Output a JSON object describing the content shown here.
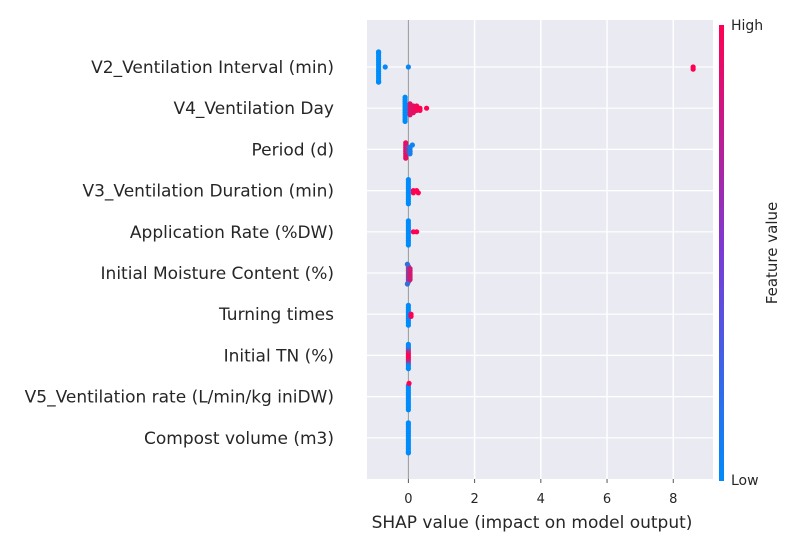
{
  "chart_data": {
    "type": "scatter",
    "subtype": "shap-beeswarm",
    "xlabel": "SHAP value (impact on model output)",
    "xlim": [
      -1.25,
      9.2
    ],
    "xticks": [
      0,
      2,
      4,
      6,
      8
    ],
    "grid": true,
    "colorbar": {
      "title": "Feature value",
      "high_label": "High",
      "low_label": "Low",
      "low_color": "#008bfb",
      "high_color": "#ff0052"
    },
    "features": [
      {
        "name": "V2_Ventilation Interval (min)",
        "points": [
          {
            "x": -0.9,
            "f": 0.0
          },
          {
            "x": -0.9,
            "f": 0.0
          },
          {
            "x": -0.9,
            "f": 0.0
          },
          {
            "x": -0.9,
            "f": 0.0
          },
          {
            "x": -0.9,
            "f": 0.0
          },
          {
            "x": -0.9,
            "f": 0.0
          },
          {
            "x": -0.9,
            "f": 0.0
          },
          {
            "x": -0.9,
            "f": 0.0
          },
          {
            "x": -0.9,
            "f": 0.0
          },
          {
            "x": -0.9,
            "f": 0.0
          },
          {
            "x": -0.9,
            "f": 0.0
          },
          {
            "x": -0.9,
            "f": 0.0
          },
          {
            "x": -0.9,
            "f": 0.0
          },
          {
            "x": -0.9,
            "f": 0.0
          },
          {
            "x": -0.9,
            "f": 0.0
          },
          {
            "x": -0.9,
            "f": 0.0
          },
          {
            "x": -0.9,
            "f": 0.0
          },
          {
            "x": -0.9,
            "f": 0.0
          },
          {
            "x": -0.7,
            "f": 0.02
          },
          {
            "x": 0.0,
            "f": 0.03
          },
          {
            "x": 8.6,
            "f": 1.0
          },
          {
            "x": 8.6,
            "f": 1.0
          }
        ]
      },
      {
        "name": "V4_Ventilation Day",
        "points": [
          {
            "x": -0.1,
            "f": 0.0
          },
          {
            "x": -0.1,
            "f": 0.0
          },
          {
            "x": -0.1,
            "f": 0.0
          },
          {
            "x": -0.1,
            "f": 0.0
          },
          {
            "x": -0.1,
            "f": 0.0
          },
          {
            "x": -0.1,
            "f": 0.0
          },
          {
            "x": -0.1,
            "f": 0.0
          },
          {
            "x": -0.1,
            "f": 0.0
          },
          {
            "x": -0.1,
            "f": 0.0
          },
          {
            "x": -0.1,
            "f": 0.0
          },
          {
            "x": -0.1,
            "f": 0.0
          },
          {
            "x": -0.1,
            "f": 0.0
          },
          {
            "x": 0.05,
            "f": 0.85
          },
          {
            "x": 0.05,
            "f": 0.85
          },
          {
            "x": 0.05,
            "f": 0.85
          },
          {
            "x": 0.05,
            "f": 0.85
          },
          {
            "x": 0.05,
            "f": 0.85
          },
          {
            "x": 0.05,
            "f": 0.85
          },
          {
            "x": 0.15,
            "f": 0.9
          },
          {
            "x": 0.15,
            "f": 0.9
          },
          {
            "x": 0.15,
            "f": 0.9
          },
          {
            "x": 0.15,
            "f": 0.9
          },
          {
            "x": 0.25,
            "f": 0.95
          },
          {
            "x": 0.25,
            "f": 0.95
          },
          {
            "x": 0.25,
            "f": 0.95
          },
          {
            "x": 0.35,
            "f": 1.0
          },
          {
            "x": 0.35,
            "f": 1.0
          },
          {
            "x": 0.55,
            "f": 1.0
          }
        ]
      },
      {
        "name": "Period (d)",
        "points": [
          {
            "x": -0.08,
            "f": 0.9
          },
          {
            "x": -0.08,
            "f": 0.9
          },
          {
            "x": -0.08,
            "f": 0.9
          },
          {
            "x": -0.08,
            "f": 0.9
          },
          {
            "x": -0.08,
            "f": 0.9
          },
          {
            "x": -0.08,
            "f": 0.9
          },
          {
            "x": -0.08,
            "f": 0.9
          },
          {
            "x": -0.08,
            "f": 0.9
          },
          {
            "x": -0.02,
            "f": 0.6
          },
          {
            "x": -0.02,
            "f": 0.6
          },
          {
            "x": -0.02,
            "f": 0.6
          },
          {
            "x": 0.05,
            "f": 0.1
          },
          {
            "x": 0.05,
            "f": 0.1
          },
          {
            "x": 0.05,
            "f": 0.1
          },
          {
            "x": 0.05,
            "f": 0.1
          },
          {
            "x": 0.12,
            "f": 0.05
          }
        ]
      },
      {
        "name": "V3_Ventilation Duration (min)",
        "points": [
          {
            "x": 0.0,
            "f": 0.0
          },
          {
            "x": 0.0,
            "f": 0.0
          },
          {
            "x": 0.0,
            "f": 0.0
          },
          {
            "x": 0.0,
            "f": 0.0
          },
          {
            "x": 0.0,
            "f": 0.0
          },
          {
            "x": 0.0,
            "f": 0.0
          },
          {
            "x": 0.0,
            "f": 0.0
          },
          {
            "x": 0.0,
            "f": 0.0
          },
          {
            "x": 0.0,
            "f": 0.0
          },
          {
            "x": 0.0,
            "f": 0.0
          },
          {
            "x": 0.0,
            "f": 0.0
          },
          {
            "x": 0.0,
            "f": 0.0
          },
          {
            "x": 0.15,
            "f": 1.0
          },
          {
            "x": 0.15,
            "f": 1.0
          },
          {
            "x": 0.25,
            "f": 1.0
          },
          {
            "x": 0.3,
            "f": 1.0
          }
        ]
      },
      {
        "name": "Application Rate (%DW)",
        "points": [
          {
            "x": 0.0,
            "f": 0.0
          },
          {
            "x": 0.0,
            "f": 0.0
          },
          {
            "x": 0.0,
            "f": 0.0
          },
          {
            "x": 0.0,
            "f": 0.0
          },
          {
            "x": 0.0,
            "f": 0.0
          },
          {
            "x": 0.0,
            "f": 0.0
          },
          {
            "x": 0.0,
            "f": 0.0
          },
          {
            "x": 0.0,
            "f": 0.0
          },
          {
            "x": 0.0,
            "f": 0.0
          },
          {
            "x": 0.0,
            "f": 0.0
          },
          {
            "x": 0.0,
            "f": 0.0
          },
          {
            "x": 0.0,
            "f": 0.0
          },
          {
            "x": 0.15,
            "f": 1.0
          },
          {
            "x": 0.25,
            "f": 1.0
          }
        ]
      },
      {
        "name": "Initial Moisture Content (%)",
        "points": [
          {
            "x": 0.0,
            "f": 0.5
          },
          {
            "x": 0.0,
            "f": 0.5
          },
          {
            "x": 0.0,
            "f": 0.5
          },
          {
            "x": 0.0,
            "f": 0.5
          },
          {
            "x": 0.0,
            "f": 0.5
          },
          {
            "x": 0.0,
            "f": 0.5
          },
          {
            "x": 0.0,
            "f": 0.5
          },
          {
            "x": 0.0,
            "f": 0.5
          },
          {
            "x": 0.05,
            "f": 0.8
          },
          {
            "x": 0.05,
            "f": 0.8
          },
          {
            "x": 0.05,
            "f": 0.8
          },
          {
            "x": 0.05,
            "f": 0.8
          },
          {
            "x": 0.05,
            "f": 0.8
          },
          {
            "x": 0.05,
            "f": 0.8
          },
          {
            "x": -0.03,
            "f": 0.2
          },
          {
            "x": -0.03,
            "f": 0.2
          }
        ]
      },
      {
        "name": "Turning times",
        "points": [
          {
            "x": 0.0,
            "f": 0.0
          },
          {
            "x": 0.0,
            "f": 0.0
          },
          {
            "x": 0.0,
            "f": 0.0
          },
          {
            "x": 0.0,
            "f": 0.0
          },
          {
            "x": 0.0,
            "f": 0.0
          },
          {
            "x": 0.0,
            "f": 0.0
          },
          {
            "x": 0.0,
            "f": 0.0
          },
          {
            "x": 0.0,
            "f": 0.0
          },
          {
            "x": 0.0,
            "f": 0.0
          },
          {
            "x": 0.0,
            "f": 0.0
          },
          {
            "x": 0.08,
            "f": 1.0
          },
          {
            "x": 0.08,
            "f": 1.0
          }
        ]
      },
      {
        "name": "Initial TN (%)",
        "points": [
          {
            "x": 0.0,
            "f": 1.0
          },
          {
            "x": 0.0,
            "f": 1.0
          },
          {
            "x": 0.0,
            "f": 0.95
          },
          {
            "x": 0.0,
            "f": 0.9
          },
          {
            "x": 0.0,
            "f": 0.8
          },
          {
            "x": 0.0,
            "f": 0.7
          },
          {
            "x": 0.0,
            "f": 0.5
          },
          {
            "x": 0.0,
            "f": 0.3
          },
          {
            "x": 0.0,
            "f": 0.1
          },
          {
            "x": 0.0,
            "f": 0.0
          },
          {
            "x": 0.0,
            "f": 0.0
          },
          {
            "x": 0.0,
            "f": 0.0
          }
        ]
      },
      {
        "name": "V5_Ventilation rate (L/min/kg iniDW)",
        "points": [
          {
            "x": 0.0,
            "f": 0.0
          },
          {
            "x": 0.0,
            "f": 0.0
          },
          {
            "x": 0.0,
            "f": 0.0
          },
          {
            "x": 0.0,
            "f": 0.0
          },
          {
            "x": 0.0,
            "f": 0.0
          },
          {
            "x": 0.0,
            "f": 0.0
          },
          {
            "x": 0.0,
            "f": 0.0
          },
          {
            "x": 0.0,
            "f": 0.0
          },
          {
            "x": 0.0,
            "f": 0.0
          },
          {
            "x": 0.0,
            "f": 0.0
          },
          {
            "x": 0.0,
            "f": 0.0
          },
          {
            "x": 0.0,
            "f": 0.0
          },
          {
            "x": 0.02,
            "f": 1.0
          }
        ]
      },
      {
        "name": "Compost volume (m3)",
        "points": [
          {
            "x": 0.0,
            "f": 0.0
          },
          {
            "x": 0.0,
            "f": 0.0
          },
          {
            "x": 0.0,
            "f": 0.0
          },
          {
            "x": 0.0,
            "f": 0.0
          },
          {
            "x": 0.0,
            "f": 0.0
          },
          {
            "x": 0.0,
            "f": 0.0
          },
          {
            "x": 0.0,
            "f": 0.0
          },
          {
            "x": 0.0,
            "f": 0.0
          },
          {
            "x": 0.0,
            "f": 0.0
          },
          {
            "x": 0.0,
            "f": 0.0
          },
          {
            "x": 0.0,
            "f": 0.0
          },
          {
            "x": 0.0,
            "f": 0.0
          },
          {
            "x": 0.0,
            "f": 0.0
          },
          {
            "x": 0.0,
            "f": 0.0
          },
          {
            "x": 0.0,
            "f": 0.0
          },
          {
            "x": 0.0,
            "f": 0.0
          }
        ]
      }
    ]
  }
}
